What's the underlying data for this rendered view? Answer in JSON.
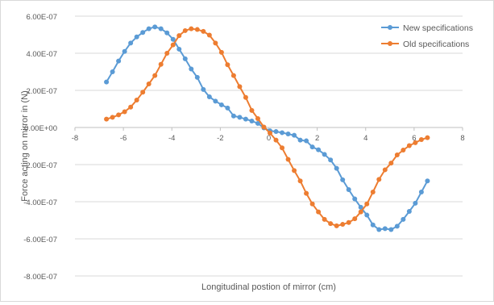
{
  "chart_data": {
    "type": "scatter",
    "title": "",
    "xlabel": "Longitudinal postion of mirror (cm)",
    "ylabel": "Force acting on mirror in (N)",
    "xlim": [
      -8,
      8
    ],
    "ylim": [
      -8e-07,
      6e-07
    ],
    "x_ticks": [
      -8,
      -6,
      -4,
      -2,
      0,
      2,
      4,
      6,
      8
    ],
    "x_tick_labels": [
      "-8",
      "-6",
      "-4",
      "-2",
      "0",
      "2",
      "4",
      "6",
      "8"
    ],
    "y_ticks": [
      6e-07,
      4e-07,
      2e-07,
      0,
      -2e-07,
      -4e-07,
      -6e-07,
      -8e-07
    ],
    "y_tick_labels": [
      "6.00E-07",
      "4.00E-07",
      "2.00E-07",
      "0.00E+00",
      "-2.00E-07",
      "-4.00E-07",
      "-6.00E-07",
      "-8.00E-07"
    ],
    "grid": "horizontal",
    "legend_position": "top-right",
    "series": [
      {
        "name": "New specifications",
        "color": "#5b9bd5",
        "x": [
          -6.7,
          -6.45,
          -6.2,
          -5.95,
          -5.7,
          -5.45,
          -5.2,
          -4.95,
          -4.7,
          -4.45,
          -4.2,
          -3.95,
          -3.7,
          -3.45,
          -3.2,
          -2.95,
          -2.7,
          -2.45,
          -2.2,
          -1.95,
          -1.7,
          -1.45,
          -1.2,
          -0.95,
          -0.7,
          -0.45,
          -0.2,
          0.05,
          0.3,
          0.55,
          0.8,
          1.05,
          1.3,
          1.55,
          1.8,
          2.05,
          2.3,
          2.55,
          2.8,
          3.05,
          3.3,
          3.55,
          3.8,
          4.05,
          4.3,
          4.55,
          4.8,
          5.05,
          5.3,
          5.55,
          5.8,
          6.05,
          6.3,
          6.55
        ],
        "y": [
          2.45e-07,
          3e-07,
          3.58e-07,
          4.1e-07,
          4.55e-07,
          4.88e-07,
          5.12e-07,
          5.32e-07,
          5.42e-07,
          5.32e-07,
          5.1e-07,
          4.75e-07,
          4.22e-07,
          3.7e-07,
          3.15e-07,
          2.7e-07,
          2.05e-07,
          1.65e-07,
          1.42e-07,
          1.22e-07,
          1.05e-07,
          6.2e-08,
          5.5e-08,
          4.5e-08,
          3.5e-08,
          2.2e-08,
          -2e-09,
          -1.8e-08,
          -2.2e-08,
          -2.8e-08,
          -3.5e-08,
          -4.2e-08,
          -6.8e-08,
          -7.2e-08,
          -1.05e-07,
          -1.2e-07,
          -1.45e-07,
          -1.75e-07,
          -2.2e-07,
          -2.82e-07,
          -3.35e-07,
          -3.85e-07,
          -4.3e-07,
          -4.72e-07,
          -5.25e-07,
          -5.5e-07,
          -5.45e-07,
          -5.5e-07,
          -5.32e-07,
          -4.95e-07,
          -4.52e-07,
          -4.08e-07,
          -3.48e-07,
          -2.88e-07
        ]
      },
      {
        "name": "Old specifications",
        "color": "#ed7d31",
        "x": [
          -6.7,
          -6.45,
          -6.2,
          -5.95,
          -5.7,
          -5.45,
          -5.2,
          -4.95,
          -4.7,
          -4.45,
          -4.2,
          -3.95,
          -3.7,
          -3.45,
          -3.2,
          -2.95,
          -2.7,
          -2.45,
          -2.2,
          -1.95,
          -1.7,
          -1.45,
          -1.2,
          -0.95,
          -0.7,
          -0.45,
          -0.2,
          0.05,
          0.3,
          0.55,
          0.8,
          1.05,
          1.3,
          1.55,
          1.8,
          2.05,
          2.3,
          2.55,
          2.8,
          3.05,
          3.3,
          3.55,
          3.8,
          4.05,
          4.3,
          4.55,
          4.8,
          5.05,
          5.3,
          5.55,
          5.8,
          6.05,
          6.3,
          6.55
        ],
        "y": [
          4.5e-08,
          5.5e-08,
          6.8e-08,
          8.5e-08,
          1.1e-07,
          1.48e-07,
          1.9e-07,
          2.35e-07,
          2.8e-07,
          3.4e-07,
          4e-07,
          4.45e-07,
          4.95e-07,
          5.22e-07,
          5.32e-07,
          5.28e-07,
          5.18e-07,
          4.98e-07,
          4.55e-07,
          4.05e-07,
          3.38e-07,
          2.8e-07,
          2.2e-07,
          1.62e-07,
          9.2e-08,
          4.8e-08,
          2e-09,
          -3e-08,
          -6.8e-08,
          -1.1e-07,
          -1.72e-07,
          -2.32e-07,
          -2.88e-07,
          -3.55e-07,
          -4.12e-07,
          -4.55e-07,
          -4.95e-07,
          -5.18e-07,
          -5.3e-07,
          -5.22e-07,
          -5.12e-07,
          -4.92e-07,
          -4.55e-07,
          -4.12e-07,
          -3.48e-07,
          -2.8e-07,
          -2.28e-07,
          -1.92e-07,
          -1.48e-07,
          -1.22e-07,
          -9.8e-08,
          -8.2e-08,
          -6.5e-08,
          -5.5e-08
        ]
      }
    ]
  }
}
